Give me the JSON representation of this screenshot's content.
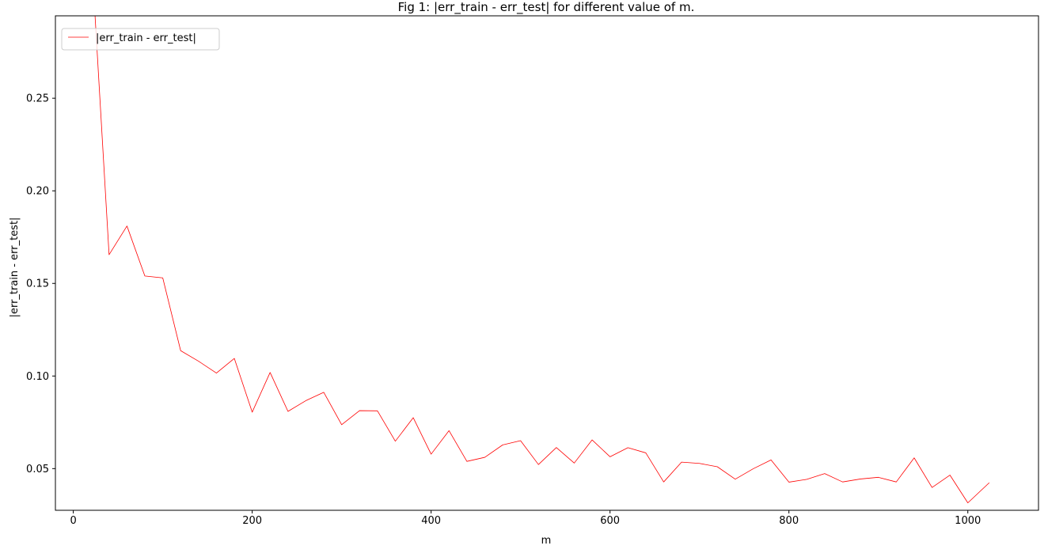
{
  "chart_data": {
    "type": "line",
    "title": "Fig 1: |err_train - err_test| for different value of m.",
    "xlabel": "m",
    "ylabel": "|err_train - err_test|",
    "xlim": [
      -20,
      1079
    ],
    "ylim": [
      0.0275,
      0.2945
    ],
    "xticks": [
      0,
      200,
      400,
      600,
      800,
      1000
    ],
    "yticks": [
      0.05,
      0.1,
      0.15,
      0.2,
      0.25
    ],
    "ytick_labels": [
      "0.05",
      "0.10",
      "0.15",
      "0.20",
      "0.25"
    ],
    "grid": false,
    "legend_position": "upper left",
    "colors": {
      "series": "#ff0000",
      "axes": "#000000",
      "background": "#ffffff"
    },
    "series": [
      {
        "name": "|err_train - err_test|",
        "x": [
          20,
          40,
          60,
          80,
          100,
          120,
          140,
          160,
          180,
          200,
          220,
          240,
          260,
          280,
          300,
          320,
          340,
          360,
          380,
          400,
          420,
          440,
          460,
          480,
          500,
          520,
          540,
          560,
          580,
          600,
          620,
          640,
          660,
          680,
          700,
          720,
          740,
          760,
          780,
          800,
          820,
          840,
          860,
          880,
          900,
          920,
          940,
          960,
          980,
          1000,
          1024
        ],
        "values": [
          0.33,
          0.1655,
          0.181,
          0.154,
          0.153,
          0.1137,
          0.108,
          0.1016,
          0.1095,
          0.0805,
          0.1019,
          0.0809,
          0.0867,
          0.0912,
          0.0737,
          0.0813,
          0.0812,
          0.0648,
          0.0775,
          0.0578,
          0.0705,
          0.0539,
          0.0561,
          0.0628,
          0.0651,
          0.0522,
          0.0614,
          0.053,
          0.0655,
          0.0564,
          0.0613,
          0.0585,
          0.0428,
          0.0535,
          0.0528,
          0.051,
          0.0443,
          0.0499,
          0.0547,
          0.0427,
          0.0442,
          0.0473,
          0.0428,
          0.0444,
          0.0453,
          0.0428,
          0.0558,
          0.0398,
          0.0465,
          0.0315,
          0.0424
        ]
      }
    ]
  }
}
